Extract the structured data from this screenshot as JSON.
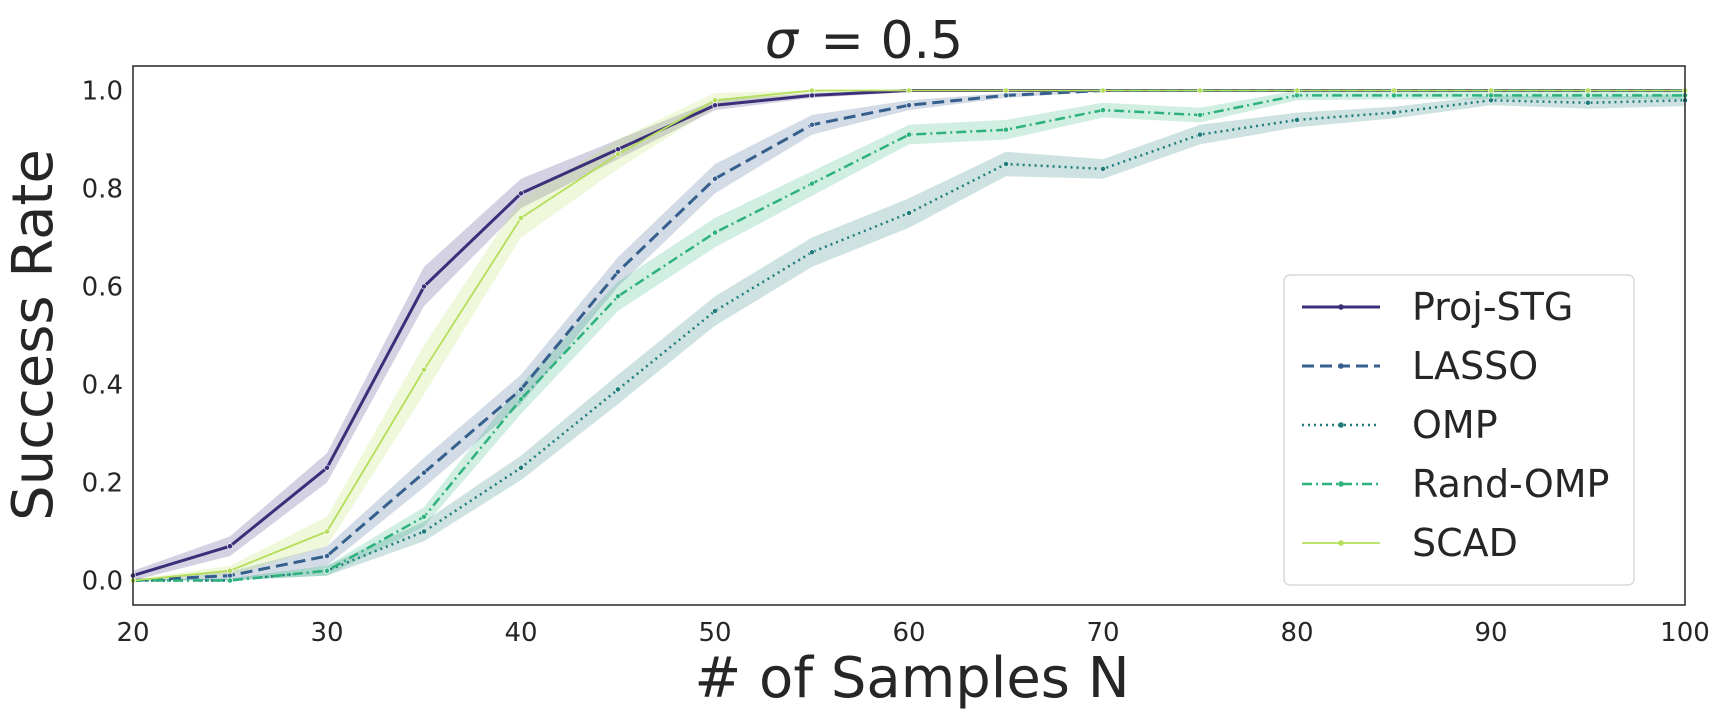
{
  "chart_data": {
    "type": "line",
    "title_prefix": "σ",
    "title_eq": "= 0.5",
    "xlabel": "# of Samples N",
    "ylabel": "Success Rate",
    "xlim": [
      20,
      100
    ],
    "ylim": [
      -0.05,
      1.05
    ],
    "xticks": [
      20,
      30,
      40,
      50,
      60,
      70,
      80,
      90,
      100
    ],
    "xtick_labels": [
      "20",
      "30",
      "40",
      "50",
      "60",
      "70",
      "80",
      "90",
      "100"
    ],
    "yticks": [
      0.0,
      0.2,
      0.4,
      0.6,
      0.8,
      1.0
    ],
    "ytick_labels": [
      "0.0",
      "0.2",
      "0.4",
      "0.6",
      "0.8",
      "1.0"
    ],
    "grid": false,
    "legend_position": "lower-right",
    "x": [
      20,
      25,
      30,
      35,
      40,
      45,
      50,
      55,
      60,
      65,
      70,
      75,
      80,
      85,
      90,
      95,
      100
    ],
    "series": [
      {
        "name": "Proj-STG",
        "color": "#3b2f7a",
        "dash": "solid",
        "values": [
          0.01,
          0.07,
          0.23,
          0.6,
          0.79,
          0.88,
          0.97,
          0.99,
          1.0,
          1.0,
          1.0,
          1.0,
          1.0,
          1.0,
          1.0,
          1.0,
          1.0
        ],
        "band": [
          0.01,
          0.02,
          0.03,
          0.04,
          0.03,
          0.02,
          0.01,
          0.005,
          0.003,
          0.002,
          0.001,
          0.001,
          0.001,
          0.001,
          0.001,
          0.001,
          0.001
        ]
      },
      {
        "name": "LASSO",
        "color": "#355f8d",
        "dash": "dashed",
        "values": [
          0.0,
          0.01,
          0.05,
          0.22,
          0.39,
          0.63,
          0.82,
          0.93,
          0.97,
          0.99,
          1.0,
          1.0,
          1.0,
          1.0,
          1.0,
          1.0,
          1.0
        ],
        "band": [
          0.002,
          0.008,
          0.02,
          0.03,
          0.03,
          0.03,
          0.03,
          0.02,
          0.01,
          0.005,
          0.002,
          0.001,
          0.001,
          0.001,
          0.001,
          0.001,
          0.001
        ]
      },
      {
        "name": "OMP",
        "color": "#1f7c7a",
        "dash": "dotted",
        "values": [
          0.0,
          0.0,
          0.02,
          0.1,
          0.23,
          0.39,
          0.55,
          0.67,
          0.75,
          0.85,
          0.84,
          0.91,
          0.94,
          0.955,
          0.98,
          0.975,
          0.98
        ],
        "band": [
          0.002,
          0.004,
          0.01,
          0.02,
          0.025,
          0.03,
          0.03,
          0.03,
          0.03,
          0.025,
          0.02,
          0.02,
          0.015,
          0.012,
          0.01,
          0.012,
          0.012
        ]
      },
      {
        "name": "Rand-OMP",
        "color": "#2db27d",
        "dash": "dashdot",
        "values": [
          0.0,
          0.0,
          0.02,
          0.13,
          0.37,
          0.58,
          0.71,
          0.81,
          0.91,
          0.92,
          0.96,
          0.95,
          0.99,
          0.99,
          0.99,
          0.99,
          0.99
        ],
        "band": [
          0.002,
          0.004,
          0.01,
          0.02,
          0.03,
          0.03,
          0.03,
          0.025,
          0.02,
          0.02,
          0.015,
          0.015,
          0.01,
          0.008,
          0.008,
          0.008,
          0.008
        ]
      },
      {
        "name": "SCAD",
        "color": "#b5de5a",
        "dash": "solid-thin",
        "values": [
          0.0,
          0.02,
          0.1,
          0.43,
          0.74,
          0.87,
          0.98,
          1.0,
          1.0,
          1.0,
          1.0,
          1.0,
          1.0,
          1.0,
          1.0,
          1.0,
          1.0
        ],
        "band": [
          0.002,
          0.01,
          0.03,
          0.05,
          0.04,
          0.03,
          0.015,
          0.005,
          0.002,
          0.001,
          0.001,
          0.001,
          0.001,
          0.001,
          0.001,
          0.001,
          0.001
        ]
      }
    ]
  }
}
